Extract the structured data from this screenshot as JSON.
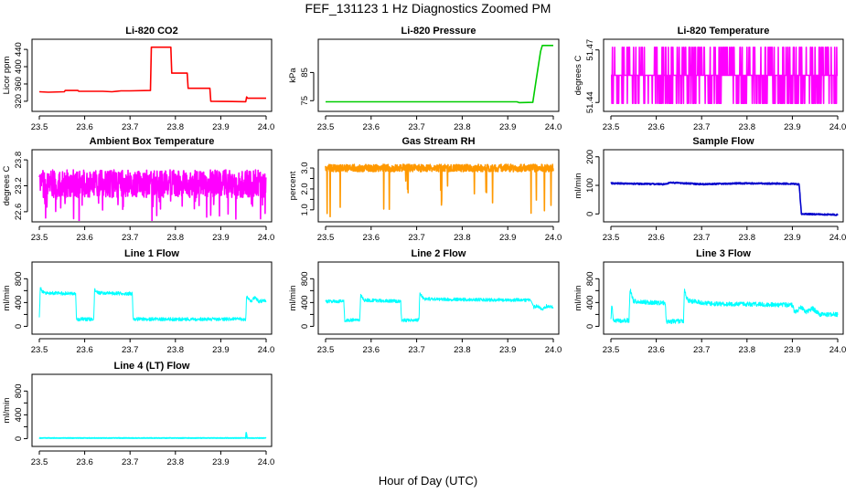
{
  "figure": {
    "title": "FEF_131123  1 Hz Diagnostics Zoomed PM",
    "xlabel": "Hour of Day (UTC)"
  },
  "chart_data": [
    {
      "type": "line",
      "title": "Li-820 CO2",
      "ylabel": "Licor ppm",
      "color": "#ff0000",
      "xlim": [
        23.5,
        24.0
      ],
      "ylim": [
        305,
        455
      ],
      "xticks": [
        23.5,
        23.6,
        23.7,
        23.8,
        23.9,
        24.0
      ],
      "xtick_labels": [
        "23.5",
        "23.6",
        "23.7",
        "23.8",
        "23.9",
        "24.0"
      ],
      "yticks": [
        320,
        360,
        400,
        440
      ],
      "ytick_labels": [
        "320",
        "360",
        "400",
        "440"
      ],
      "series": [
        {
          "noise": 0,
          "points": [
            [
              23.5,
              342
            ],
            [
              23.52,
              341
            ],
            [
              23.555,
              342
            ],
            [
              23.557,
              345
            ],
            [
              23.585,
              345
            ],
            [
              23.587,
              343
            ],
            [
              23.64,
              343
            ],
            [
              23.66,
              342
            ],
            [
              23.68,
              344
            ],
            [
              23.7,
              344
            ],
            [
              23.745,
              345
            ],
            [
              23.747,
              445
            ],
            [
              23.79,
              445
            ],
            [
              23.792,
              385
            ],
            [
              23.826,
              385
            ],
            [
              23.828,
              350
            ],
            [
              23.876,
              350
            ],
            [
              23.878,
              320
            ],
            [
              23.955,
              319
            ],
            [
              23.957,
              330
            ],
            [
              23.959,
              327
            ],
            [
              24.0,
              327
            ]
          ]
        }
      ]
    },
    {
      "type": "line",
      "title": "Li-820 Pressure",
      "ylabel": "kPa",
      "color": "#00cc00",
      "xlim": [
        23.5,
        24.0
      ],
      "ylim": [
        72.5,
        95.5
      ],
      "xticks": [
        23.5,
        23.6,
        23.7,
        23.8,
        23.9,
        24.0
      ],
      "xtick_labels": [
        "23.5",
        "23.6",
        "23.7",
        "23.8",
        "23.9",
        "24.0"
      ],
      "yticks": [
        75,
        85
      ],
      "ytick_labels": [
        "75",
        "85"
      ],
      "series": [
        {
          "noise": 0,
          "points": [
            [
              23.5,
              74.6
            ],
            [
              23.92,
              74.6
            ],
            [
              23.925,
              74.3
            ],
            [
              23.955,
              74.4
            ],
            [
              23.962,
              82.0
            ],
            [
              23.972,
              92.5
            ],
            [
              23.976,
              94.6
            ],
            [
              24.0,
              94.6
            ]
          ]
        }
      ]
    },
    {
      "type": "line",
      "title": "Li-820 Temperature",
      "ylabel": "degrees C",
      "color": "#ff00ff",
      "xlim": [
        23.5,
        24.0
      ],
      "ylim": [
        51.437,
        51.474
      ],
      "xticks": [
        23.5,
        23.6,
        23.7,
        23.8,
        23.9,
        24.0
      ],
      "xtick_labels": [
        "23.5",
        "23.6",
        "23.7",
        "23.8",
        "23.9",
        "24.0"
      ],
      "yticks": [
        51.44,
        51.47
      ],
      "ytick_labels": [
        "51.44",
        "51.47"
      ],
      "series": [
        {
          "discrete_levels": [
            51.4395,
            51.4555,
            51.4715
          ],
          "base_level": 51.4555,
          "noise": 0,
          "points": [
            [
              23.5,
              51.4555
            ],
            [
              24.0,
              51.4555
            ]
          ]
        }
      ]
    },
    {
      "type": "line",
      "title": "Ambient Box Temperature",
      "ylabel": "degrees C",
      "color": "#ff00ff",
      "xlim": [
        23.5,
        24.0
      ],
      "ylim": [
        22.45,
        23.95
      ],
      "xticks": [
        23.5,
        23.6,
        23.7,
        23.8,
        23.9,
        24.0
      ],
      "xtick_labels": [
        "23.5",
        "23.6",
        "23.7",
        "23.8",
        "23.9",
        "24.0"
      ],
      "yticks": [
        22.6,
        23.2,
        23.8
      ],
      "ytick_labels": [
        "22.6",
        "23.2",
        "23.8"
      ],
      "series": [
        {
          "noise": 0.32,
          "spikes": "down",
          "points": [
            [
              23.5,
              23.25
            ],
            [
              24.0,
              23.25
            ]
          ]
        }
      ]
    },
    {
      "type": "line",
      "title": "Gas Stream RH",
      "ylabel": "percent",
      "color": "#ff9900",
      "xlim": [
        23.5,
        24.0
      ],
      "ylim": [
        0.6,
        3.7
      ],
      "xticks": [
        23.5,
        23.6,
        23.7,
        23.8,
        23.9,
        24.0
      ],
      "xtick_labels": [
        "23.5",
        "23.6",
        "23.7",
        "23.8",
        "23.9",
        "24.0"
      ],
      "yticks": [
        1.0,
        1.5,
        2.0,
        2.5,
        3.0
      ],
      "ytick_labels": [
        "1.0",
        "",
        "2.0",
        "",
        "3.0"
      ],
      "series": [
        {
          "noise": 0.18,
          "spikes": "down-deep",
          "points": [
            [
              23.5,
              3.0
            ],
            [
              24.0,
              3.0
            ]
          ]
        }
      ]
    },
    {
      "type": "line",
      "title": "Sample Flow",
      "ylabel": "ml/min",
      "color": "#0000cc",
      "xlim": [
        23.5,
        24.0
      ],
      "ylim": [
        -15,
        212
      ],
      "xticks": [
        23.5,
        23.6,
        23.7,
        23.8,
        23.9,
        24.0
      ],
      "xtick_labels": [
        "23.5",
        "23.6",
        "23.7",
        "23.8",
        "23.9",
        "24.0"
      ],
      "yticks": [
        0,
        100,
        200
      ],
      "ytick_labels": [
        "0",
        "100",
        "200"
      ],
      "series": [
        {
          "noise": 2.5,
          "points": [
            [
              23.5,
              107
            ],
            [
              23.62,
              104
            ],
            [
              23.63,
              110
            ],
            [
              23.7,
              104
            ],
            [
              23.78,
              107
            ],
            [
              23.9,
              106
            ],
            [
              23.915,
              103
            ],
            [
              23.92,
              0
            ],
            [
              24.0,
              -3
            ]
          ]
        }
      ]
    },
    {
      "type": "line",
      "title": "Line 1 Flow",
      "ylabel": "ml/min",
      "color": "#00ffff",
      "xlim": [
        23.5,
        24.0
      ],
      "ylim": [
        -70,
        1020
      ],
      "xticks": [
        23.5,
        23.6,
        23.7,
        23.8,
        23.9,
        24.0
      ],
      "xtick_labels": [
        "23.5",
        "23.6",
        "23.7",
        "23.8",
        "23.9",
        "24.0"
      ],
      "yticks": [
        0,
        200,
        400,
        600,
        800
      ],
      "ytick_labels": [
        "0",
        "",
        "400",
        "",
        "800"
      ],
      "series": [
        {
          "noise": 30,
          "points": [
            [
              23.5,
              130
            ],
            [
              23.502,
              640
            ],
            [
              23.51,
              560
            ],
            [
              23.58,
              550
            ],
            [
              23.582,
              120
            ],
            [
              23.62,
              120
            ],
            [
              23.622,
              620
            ],
            [
              23.63,
              560
            ],
            [
              23.705,
              550
            ],
            [
              23.707,
              120
            ],
            [
              23.955,
              120
            ],
            [
              23.957,
              520
            ],
            [
              23.965,
              420
            ],
            [
              23.975,
              480
            ],
            [
              23.985,
              410
            ],
            [
              23.99,
              430
            ]
          ]
        }
      ]
    },
    {
      "type": "line",
      "title": "Line 2 Flow",
      "ylabel": "ml/min",
      "color": "#00ffff",
      "xlim": [
        23.5,
        24.0
      ],
      "ylim": [
        -70,
        1020
      ],
      "xticks": [
        23.5,
        23.6,
        23.7,
        23.8,
        23.9,
        24.0
      ],
      "xtick_labels": [
        "23.5",
        "23.6",
        "23.7",
        "23.8",
        "23.9",
        "24.0"
      ],
      "yticks": [
        0,
        200,
        400,
        600,
        800
      ],
      "ytick_labels": [
        "0",
        "",
        "400",
        "",
        "800"
      ],
      "series": [
        {
          "noise": 28,
          "points": [
            [
              23.5,
              420
            ],
            [
              23.54,
              420
            ],
            [
              23.542,
              100
            ],
            [
              23.575,
              110
            ],
            [
              23.577,
              520
            ],
            [
              23.585,
              440
            ],
            [
              23.665,
              420
            ],
            [
              23.667,
              100
            ],
            [
              23.705,
              110
            ],
            [
              23.707,
              560
            ],
            [
              23.715,
              460
            ],
            [
              23.8,
              450
            ],
            [
              23.95,
              440
            ],
            [
              23.957,
              320
            ],
            [
              23.965,
              350
            ],
            [
              23.975,
              280
            ],
            [
              23.985,
              340
            ],
            [
              24.0,
              330
            ]
          ]
        }
      ]
    },
    {
      "type": "line",
      "title": "Line 3 Flow",
      "ylabel": "ml/min",
      "color": "#00ffff",
      "xlim": [
        23.5,
        24.0
      ],
      "ylim": [
        -70,
        1020
      ],
      "xticks": [
        23.5,
        23.6,
        23.7,
        23.8,
        23.9,
        24.0
      ],
      "xtick_labels": [
        "23.5",
        "23.6",
        "23.7",
        "23.8",
        "23.9",
        "24.0"
      ],
      "yticks": [
        0,
        200,
        400,
        600,
        800
      ],
      "ytick_labels": [
        "0",
        "",
        "400",
        "",
        "800"
      ],
      "series": [
        {
          "noise": 38,
          "points": [
            [
              23.5,
              90
            ],
            [
              23.502,
              400
            ],
            [
              23.505,
              90
            ],
            [
              23.54,
              100
            ],
            [
              23.542,
              620
            ],
            [
              23.55,
              420
            ],
            [
              23.62,
              390
            ],
            [
              23.622,
              80
            ],
            [
              23.66,
              90
            ],
            [
              23.662,
              600
            ],
            [
              23.67,
              430
            ],
            [
              23.72,
              380
            ],
            [
              23.9,
              360
            ],
            [
              23.905,
              230
            ],
            [
              23.92,
              320
            ],
            [
              23.93,
              240
            ],
            [
              23.945,
              300
            ],
            [
              23.96,
              200
            ],
            [
              24.0,
              200
            ]
          ]
        }
      ]
    },
    {
      "type": "line",
      "title": "Line 4 (LT) Flow",
      "ylabel": "ml/min",
      "color": "#00ffff",
      "xlim": [
        23.5,
        24.0
      ],
      "ylim": [
        -70,
        1020
      ],
      "xticks": [
        23.5,
        23.6,
        23.7,
        23.8,
        23.9,
        24.0
      ],
      "xtick_labels": [
        "23.5",
        "23.6",
        "23.7",
        "23.8",
        "23.9",
        "24.0"
      ],
      "yticks": [
        0,
        200,
        400,
        600,
        800
      ],
      "ytick_labels": [
        "0",
        "",
        "400",
        "",
        "800"
      ],
      "series": [
        {
          "noise": 4,
          "points": [
            [
              23.5,
              10
            ],
            [
              23.955,
              10
            ],
            [
              23.956,
              110
            ],
            [
              23.958,
              10
            ],
            [
              24.0,
              10
            ]
          ]
        }
      ]
    }
  ]
}
